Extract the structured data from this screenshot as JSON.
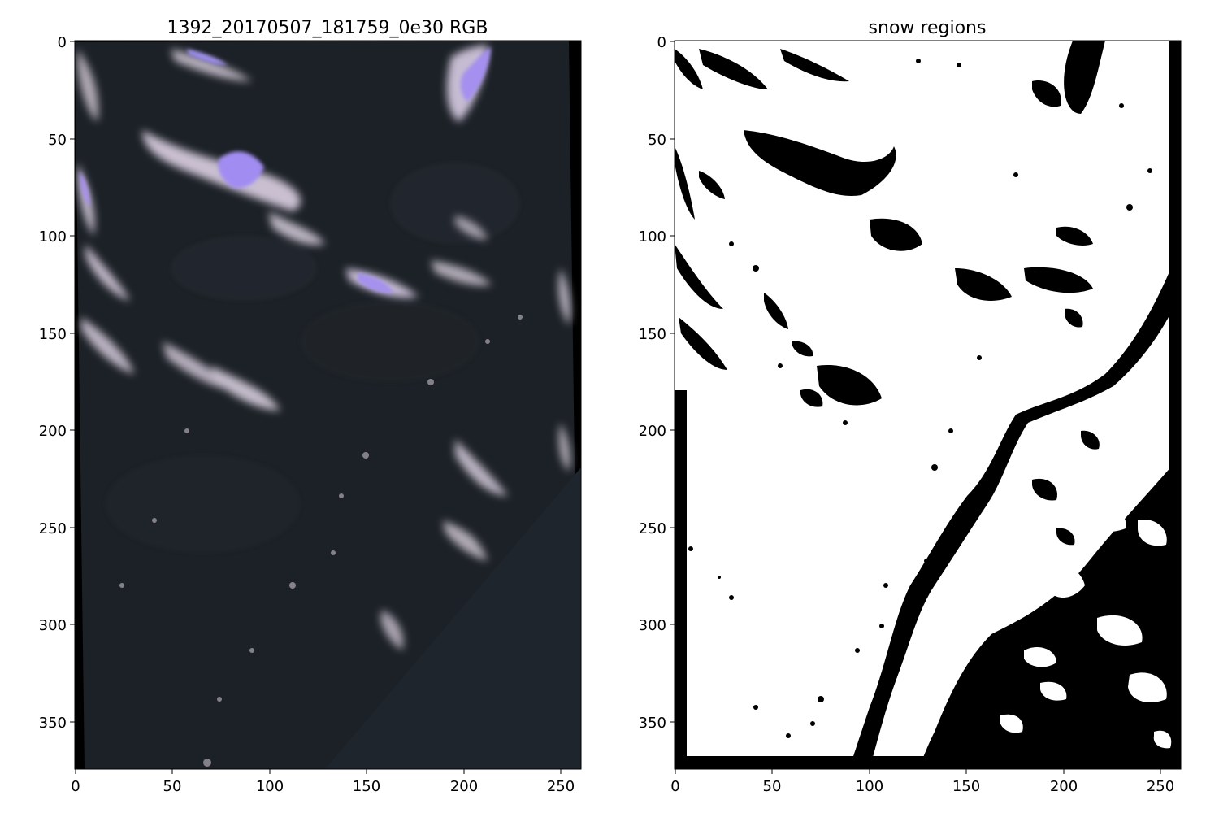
{
  "figure": {
    "panels": [
      {
        "title": "1392_20170507_181759_0e30 RGB",
        "content": "rgb-satellite-image",
        "colors": {
          "background": "#1b1f24",
          "dark": "#23282e",
          "snow_light": "#cfc4d2",
          "snow_violet": "#a08cf0",
          "border": "#000000"
        }
      },
      {
        "title": "snow regions",
        "content": "binary-snow-mask",
        "colors": {
          "snow": "#ffffff",
          "no_snow": "#000000"
        }
      }
    ],
    "x_ticks": [
      "0",
      "50",
      "100",
      "150",
      "200",
      "250"
    ],
    "y_ticks": [
      "0",
      "50",
      "100",
      "150",
      "200",
      "250",
      "300",
      "350"
    ],
    "x_range": [
      0,
      261
    ],
    "y_range": [
      0,
      375
    ]
  }
}
